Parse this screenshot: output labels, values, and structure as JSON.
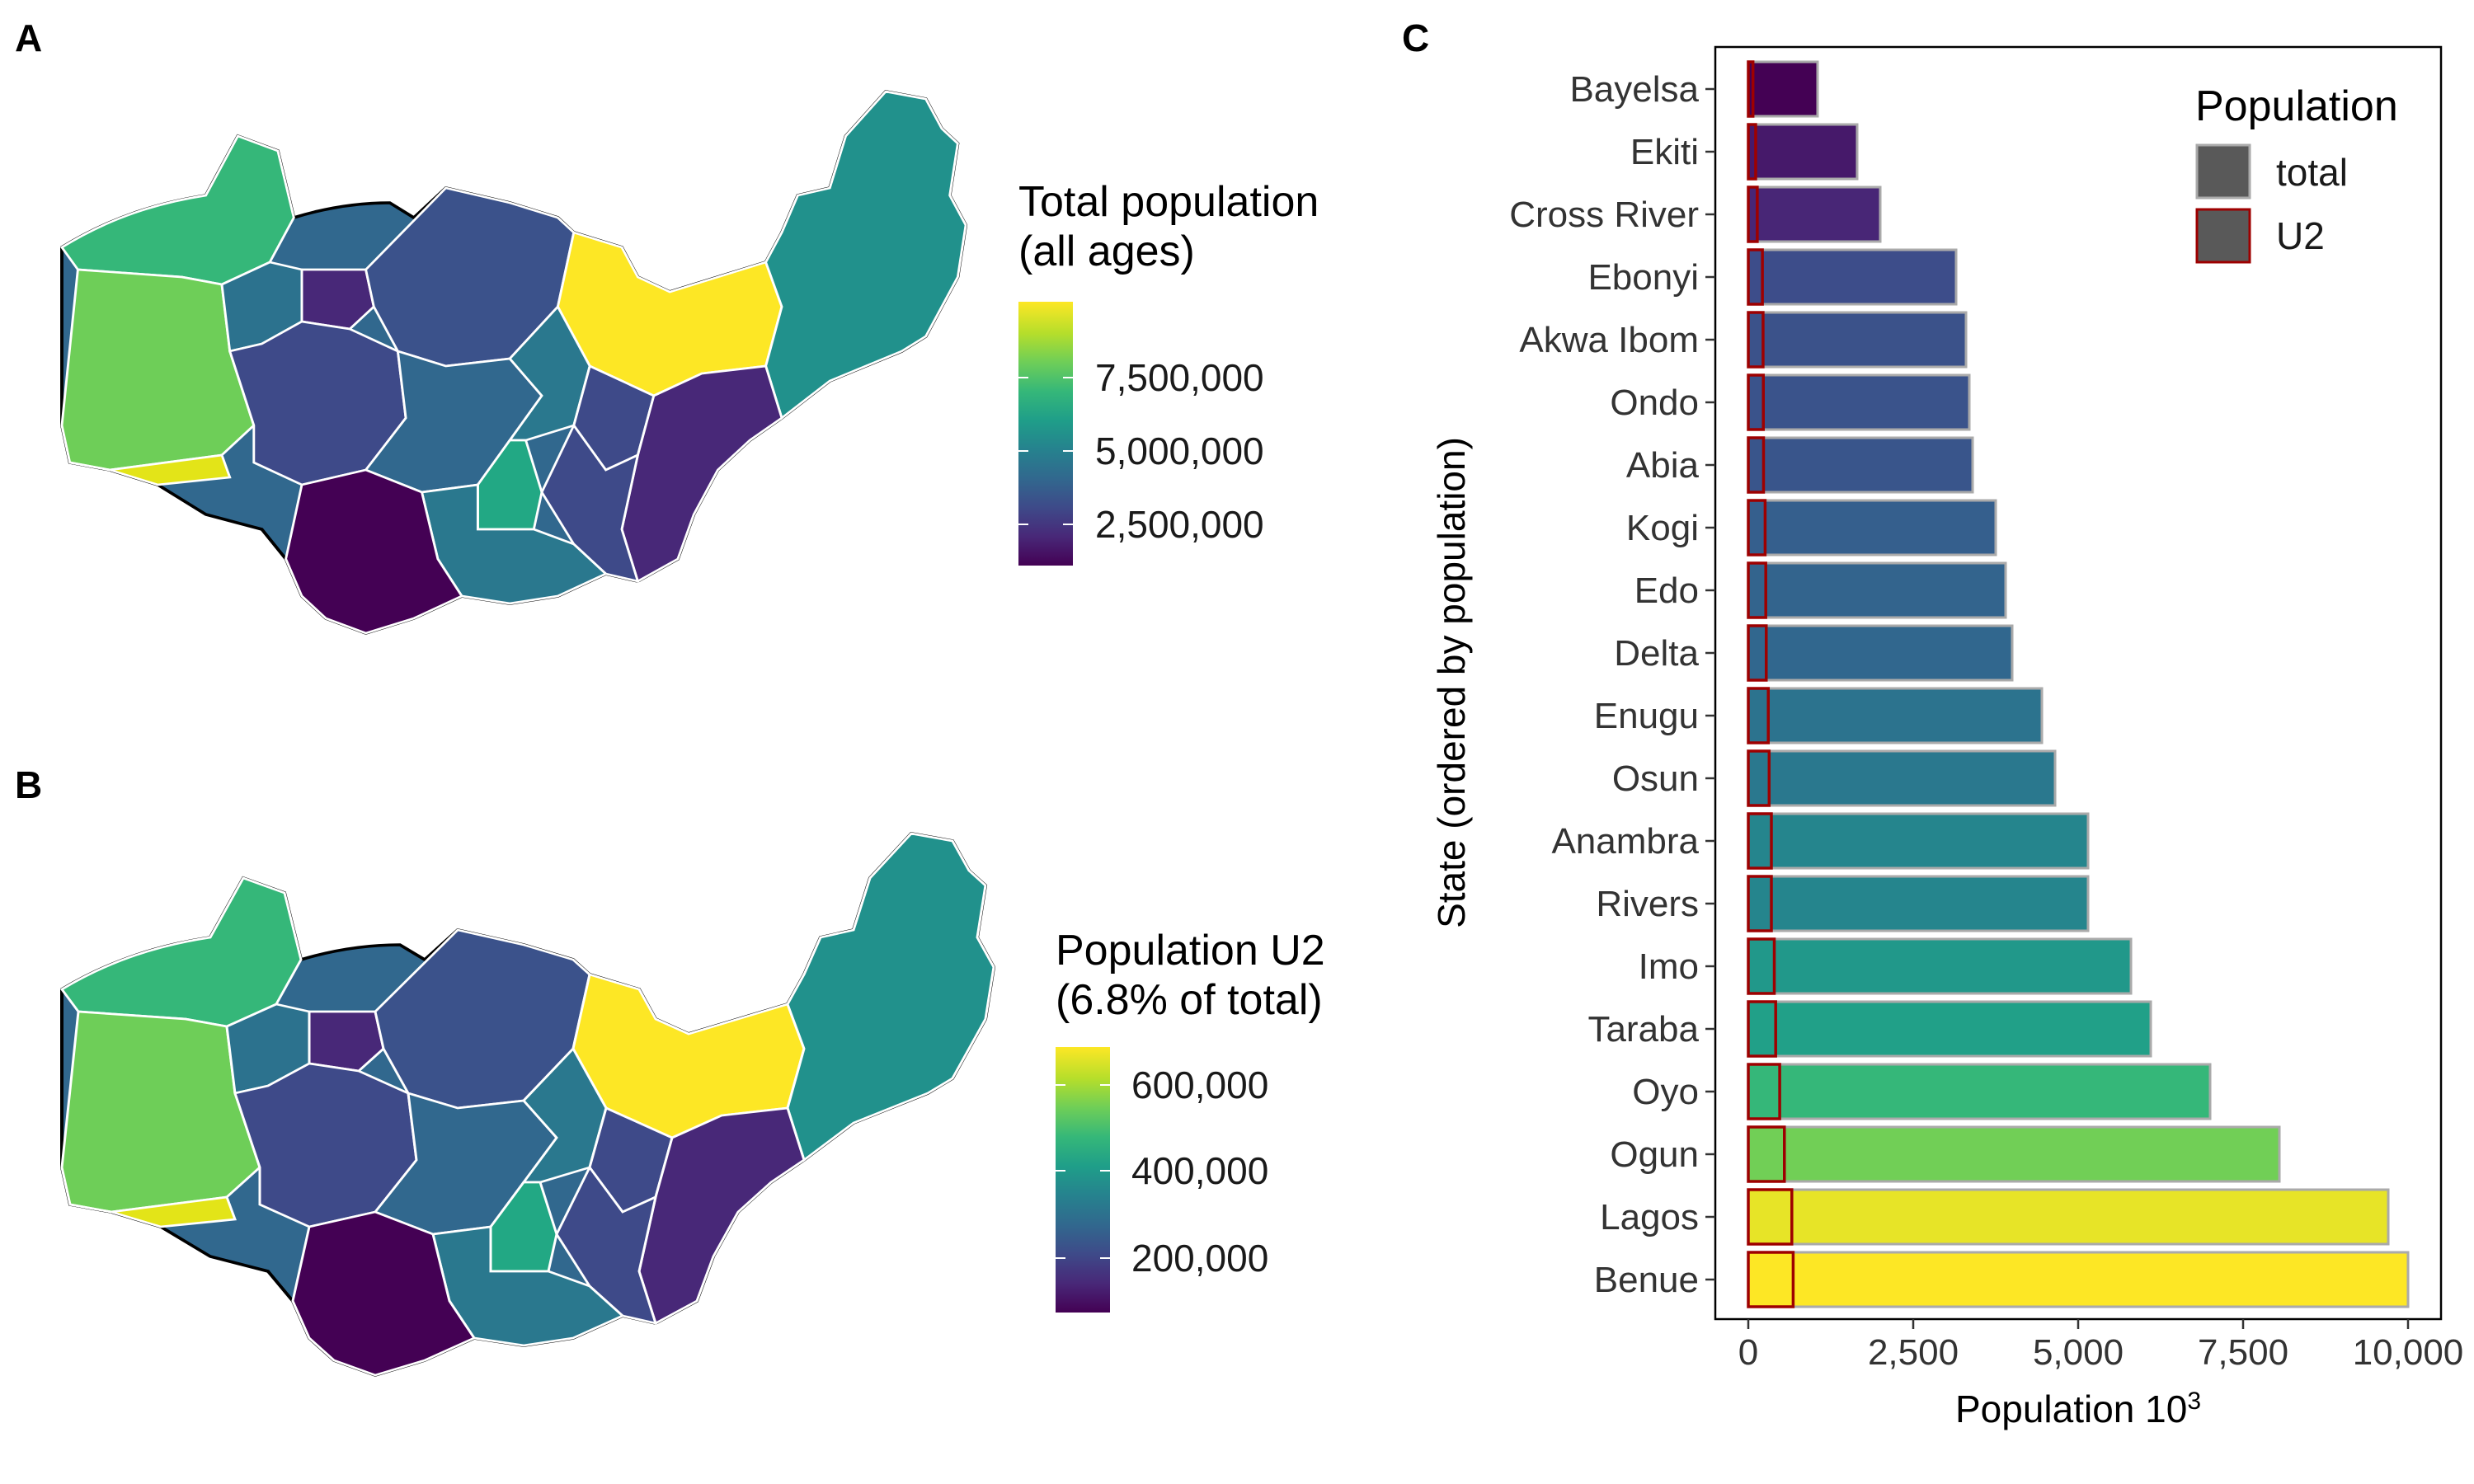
{
  "panels": {
    "a": "A",
    "b": "B",
    "c": "C"
  },
  "legend_a": {
    "title_line1": "Total population",
    "title_line2": "(all ages)",
    "ticks": [
      "7,500,000",
      "5,000,000",
      "2,500,000"
    ]
  },
  "legend_b": {
    "title_line1": "Population U2",
    "title_line2": "(6.8% of total)",
    "ticks": [
      "600,000",
      "400,000",
      "200,000"
    ]
  },
  "legend_c": {
    "title": "Population",
    "items": [
      "total",
      "U2"
    ]
  },
  "colors": {
    "viridis": [
      "#440154",
      "#482878",
      "#3e4a89",
      "#31688e",
      "#26828e",
      "#1f9e89",
      "#35b779",
      "#6ece58",
      "#b5de2b",
      "#fde725"
    ],
    "u2_outline": "#9e0000",
    "total_outline": "#aaaaaa",
    "swatch_fill": "#595959"
  },
  "chart_data": {
    "type": "bar",
    "orientation": "horizontal",
    "xlabel": "Population 10",
    "xlabel_superscript": "3",
    "ylabel": "State (ordered by population)",
    "xlim": [
      0,
      10000
    ],
    "xticks": [
      0,
      2500,
      5000,
      7500,
      10000
    ],
    "xtick_labels": [
      "0",
      "2,500",
      "5,000",
      "7,500",
      "10,000"
    ],
    "grid": false,
    "legend_position": "top-right",
    "categories": [
      "Bayelsa",
      "Ekiti",
      "Cross River",
      "Ebonyi",
      "Akwa Ibom",
      "Ondo",
      "Abia",
      "Kogi",
      "Edo",
      "Delta",
      "Enugu",
      "Osun",
      "Anambra",
      "Rivers",
      "Imo",
      "Taraba",
      "Oyo",
      "Ogun",
      "Lagos",
      "Benue"
    ],
    "series": [
      {
        "name": "total",
        "values": [
          1050,
          1650,
          2000,
          3150,
          3300,
          3350,
          3400,
          3750,
          3900,
          4000,
          4450,
          4650,
          5150,
          5150,
          5800,
          6100,
          7000,
          8050,
          9700,
          10000
        ]
      },
      {
        "name": "U2",
        "values": [
          71,
          112,
          136,
          214,
          224,
          228,
          231,
          255,
          265,
          272,
          303,
          316,
          350,
          350,
          394,
          415,
          476,
          547,
          660,
          680
        ]
      }
    ]
  }
}
